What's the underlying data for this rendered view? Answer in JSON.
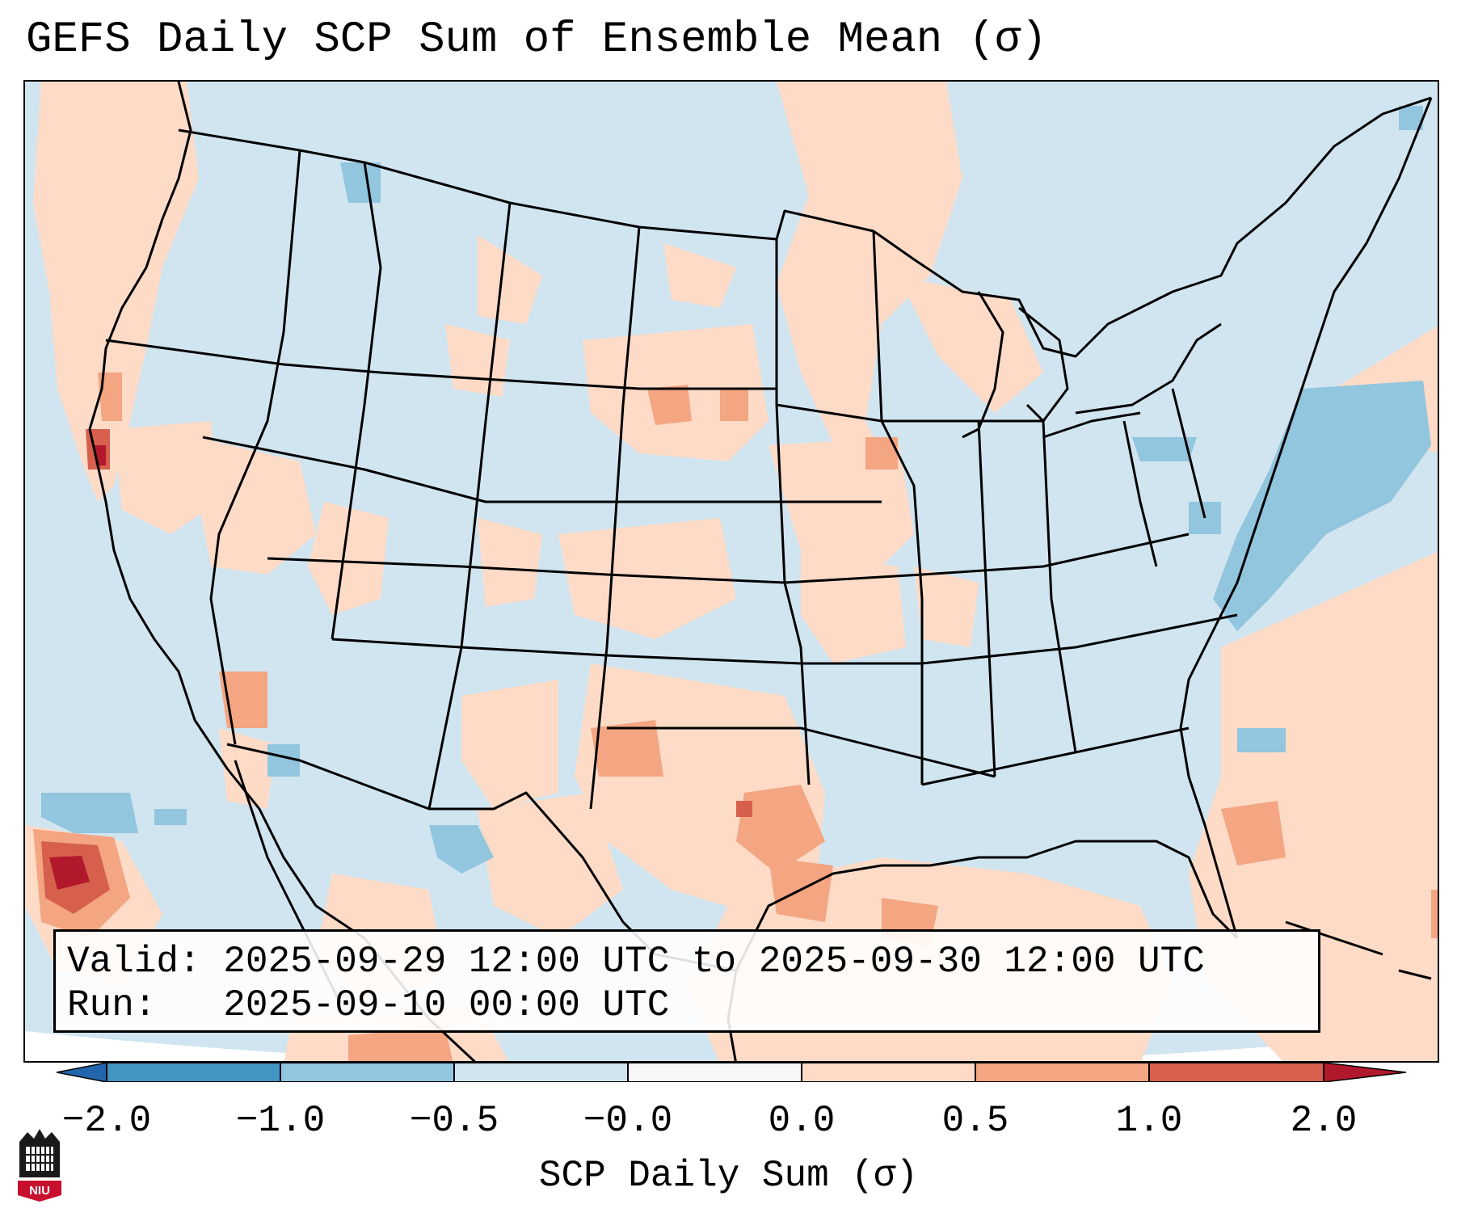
{
  "title": "GEFS Daily SCP Sum of Ensemble Mean (σ)",
  "info": {
    "valid_label": "Valid:",
    "valid_value": "2025-09-29 12:00 UTC to 2025-09-30 12:00 UTC",
    "run_label": "Run:",
    "run_value": "2025-09-10 00:00 UTC"
  },
  "colorbar": {
    "label": "SCP Daily Sum (σ)",
    "ticks": [
      "−2.0",
      "−1.0",
      "−0.5",
      "−0.0",
      "0.0",
      "0.5",
      "1.0",
      "2.0"
    ],
    "colors": [
      "#2166ac",
      "#4393c3",
      "#92c5de",
      "#d1e5f0",
      "#f7f7f7",
      "#fddbc7",
      "#f4a582",
      "#d6604d",
      "#b2182b"
    ]
  },
  "map": {
    "region": "Continental United States",
    "background_color": "#d1e5f0",
    "land_outline_color": "#000000"
  },
  "logo": {
    "text": "NIU",
    "icon": "niu-logo-icon"
  }
}
